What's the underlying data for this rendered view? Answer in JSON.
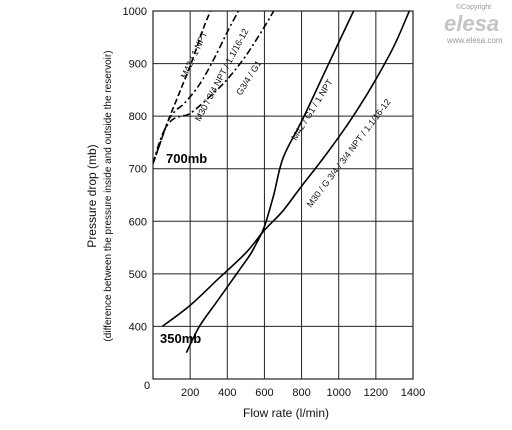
{
  "logo": {
    "copyright": "©Copyright",
    "brand": "elesa",
    "url": "www.elesa.com"
  },
  "annotations": {
    "high": "700mb",
    "low": "350mb"
  },
  "chart_data": {
    "type": "line",
    "title": "",
    "xlabel": "Flow rate (l/min)",
    "ylabel": "Pressure drop (mb)",
    "ylabel_sub": "(difference between the pressure inside and outside the reservoir)",
    "xlim": [
      0,
      1400
    ],
    "ylim": [
      300,
      1000
    ],
    "x_origin_label": "0",
    "x_ticks": [
      "200",
      "400",
      "600",
      "800",
      "1000",
      "1200",
      "1400"
    ],
    "y_ticks": [
      "400",
      "500",
      "600",
      "700",
      "800",
      "900",
      "1000"
    ],
    "grid": true,
    "series": [
      {
        "name": "M42 / 1 NPT",
        "style": "dashed",
        "points": [
          [
            0,
            710
          ],
          [
            40,
            750
          ],
          [
            80,
            790
          ],
          [
            120,
            825
          ],
          [
            160,
            860
          ],
          [
            200,
            895
          ],
          [
            240,
            935
          ],
          [
            280,
            975
          ],
          [
            310,
            1000
          ]
        ]
      },
      {
        "name": "M30 / 3/4 NPT / 1.1/16-12",
        "style": "dashdot",
        "points": [
          [
            0,
            710
          ],
          [
            40,
            750
          ],
          [
            80,
            790
          ],
          [
            120,
            810
          ],
          [
            170,
            825
          ],
          [
            250,
            860
          ],
          [
            330,
            910
          ],
          [
            400,
            960
          ],
          [
            460,
            1000
          ]
        ]
      },
      {
        "name": "G3/4 / G1",
        "style": "dashdot",
        "points": [
          [
            0,
            710
          ],
          [
            50,
            765
          ],
          [
            100,
            792
          ],
          [
            150,
            800
          ],
          [
            200,
            805
          ],
          [
            300,
            835
          ],
          [
            400,
            870
          ],
          [
            500,
            915
          ],
          [
            600,
            970
          ],
          [
            650,
            1000
          ]
        ]
      },
      {
        "name": "M42 / G1 / 1 NPT",
        "style": "solid",
        "points": [
          [
            180,
            350
          ],
          [
            250,
            400
          ],
          [
            350,
            450
          ],
          [
            450,
            500
          ],
          [
            520,
            535
          ],
          [
            560,
            560
          ],
          [
            600,
            590
          ],
          [
            650,
            650
          ],
          [
            700,
            720
          ],
          [
            800,
            790
          ],
          [
            900,
            865
          ],
          [
            1000,
            940
          ],
          [
            1080,
            1000
          ]
        ]
      },
      {
        "name": "M30 / G 3/4 / 3/4 NPT / 1.1/16-12",
        "style": "solid",
        "points": [
          [
            50,
            400
          ],
          [
            200,
            440
          ],
          [
            350,
            490
          ],
          [
            500,
            540
          ],
          [
            600,
            583
          ],
          [
            700,
            620
          ],
          [
            800,
            667
          ],
          [
            900,
            712
          ],
          [
            1000,
            760
          ],
          [
            1100,
            812
          ],
          [
            1200,
            870
          ],
          [
            1300,
            935
          ],
          [
            1380,
            1000
          ]
        ]
      }
    ]
  }
}
